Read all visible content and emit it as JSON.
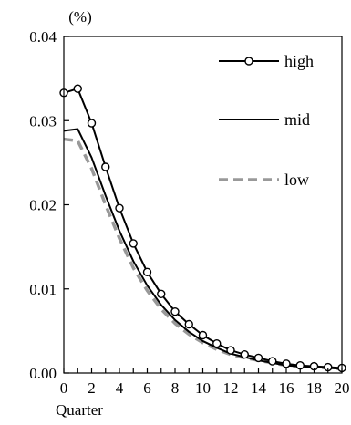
{
  "chart_data": {
    "type": "line",
    "title": "",
    "unit_label": "(%)",
    "xlabel": "Quarter",
    "ylabel": "",
    "x": [
      0,
      1,
      2,
      3,
      4,
      5,
      6,
      7,
      8,
      9,
      10,
      11,
      12,
      13,
      14,
      15,
      16,
      17,
      18,
      19,
      20
    ],
    "xlim": [
      0,
      20
    ],
    "ylim": [
      0,
      0.04
    ],
    "x_ticks": [
      "0",
      "2",
      "4",
      "6",
      "8",
      "10",
      "12",
      "14",
      "16",
      "18",
      "20"
    ],
    "y_ticks": [
      "0.00",
      "0.01",
      "0.02",
      "0.03",
      "0.04"
    ],
    "grid": false,
    "legend_position": "top-right",
    "series": [
      {
        "name": "high",
        "style": "solid-circle-markers",
        "color": "#000000",
        "values": [
          0.0333,
          0.0338,
          0.0297,
          0.0245,
          0.0196,
          0.0154,
          0.012,
          0.0094,
          0.0073,
          0.0058,
          0.0045,
          0.0035,
          0.0027,
          0.0022,
          0.0018,
          0.0014,
          0.0011,
          0.0009,
          0.0008,
          0.0007,
          0.0006
        ]
      },
      {
        "name": "mid",
        "style": "solid",
        "color": "#000000",
        "values": [
          0.0288,
          0.029,
          0.0256,
          0.0211,
          0.0169,
          0.0133,
          0.0104,
          0.0081,
          0.0063,
          0.0049,
          0.0038,
          0.003,
          0.0023,
          0.0019,
          0.0015,
          0.0012,
          0.0009,
          0.0008,
          0.0007,
          0.0006,
          0.0005
        ]
      },
      {
        "name": "low",
        "style": "dashed",
        "color": "#999999",
        "values": [
          0.0278,
          0.0276,
          0.0243,
          0.02,
          0.016,
          0.0125,
          0.0098,
          0.0076,
          0.0059,
          0.0046,
          0.0036,
          0.0028,
          0.0022,
          0.0018,
          0.0015,
          0.0012,
          0.0009,
          0.0008,
          0.0007,
          0.0006,
          0.0005
        ]
      }
    ]
  }
}
